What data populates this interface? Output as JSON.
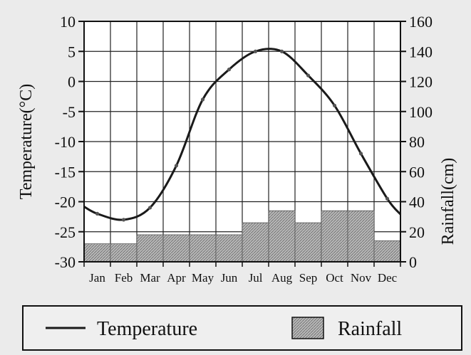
{
  "chart_data": {
    "type": "line+bar",
    "title": "",
    "categories": [
      "Jan",
      "Feb",
      "Mar",
      "Apr",
      "May",
      "Jun",
      "Jul",
      "Aug",
      "Sep",
      "Oct",
      "Nov",
      "Dec"
    ],
    "series": [
      {
        "name": "Temperature",
        "type": "line",
        "axis": "left",
        "unit": "°C",
        "values": [
          -22,
          -23,
          -21,
          -14,
          -3,
          2,
          5,
          5,
          1,
          -4,
          -12,
          -19.5
        ]
      },
      {
        "name": "Rainfall",
        "type": "bar",
        "axis": "right",
        "unit": "cm",
        "values": [
          12,
          12,
          18,
          18,
          18,
          18,
          26,
          34,
          26,
          34,
          34,
          14
        ]
      }
    ],
    "y_left": {
      "label": "Temperature(°C)",
      "range": [
        -30,
        10
      ],
      "ticks": [
        "10",
        "5",
        "0",
        "-5",
        "-10",
        "-15",
        "-20",
        "-25",
        "-30"
      ]
    },
    "y_right": {
      "label": "Rainfall(cm)",
      "range": [
        0,
        160
      ],
      "ticks": [
        "160",
        "140",
        "120",
        "100",
        "80",
        "60",
        "40",
        "20",
        "0"
      ]
    },
    "grid": true,
    "legend": {
      "position": "bottom",
      "items": [
        "Temperature",
        "Rainfall"
      ]
    }
  },
  "colors": {
    "background": "#ebebeb",
    "plot_background": "#ffffff",
    "line": "#1a1a1a",
    "bar_fill": "#b5b5b5",
    "grid": "#222222"
  }
}
